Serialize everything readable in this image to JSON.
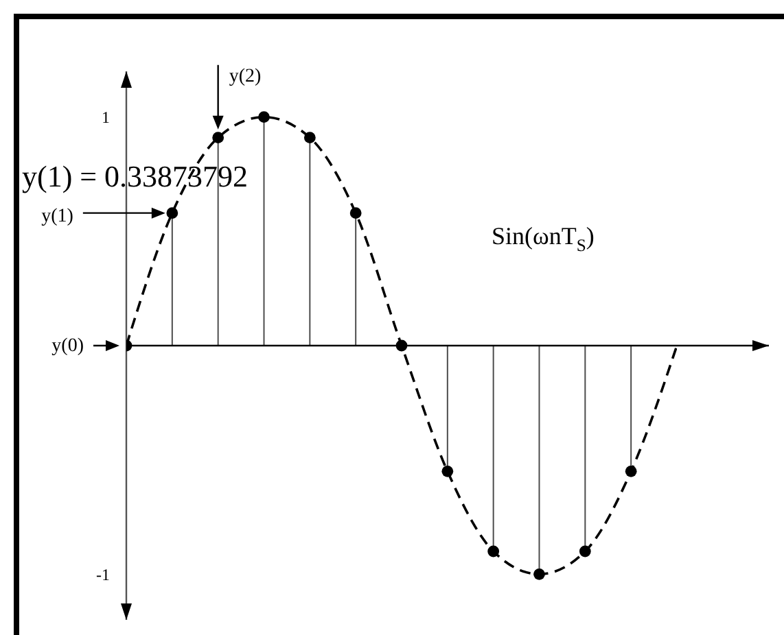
{
  "chart_data": {
    "type": "lollipop",
    "categories": [
      null,
      null,
      null,
      null,
      null,
      null,
      null,
      null,
      null,
      null,
      null,
      null,
      null
    ],
    "series": [
      {
        "color": "#000000",
        "marker": "circle",
        "values": [
          0,
          0.58,
          0.91,
          1,
          0.91,
          0.58,
          0,
          -0.55,
          -0.9,
          -1,
          -0.9,
          -0.55,
          null
        ]
      },
      {
        "type": "line",
        "color": "#000000",
        "line_style": "dashed",
        "marker": "none",
        "values": [
          0,
          0.58,
          0.91,
          1,
          0.91,
          0.58,
          0,
          -0.55,
          -0.9,
          -1,
          -0.9,
          -0.55,
          0
        ]
      }
    ],
    "ylim": [
      -1.2,
      1.2
    ],
    "yticks": [
      -1,
      1
    ],
    "tick_labels": "y",
    "ref_lines": [
      {
        "axis": "y",
        "value": 0,
        "color": "#000000"
      }
    ],
    "annotations": [
      "y(0)",
      "y(1)",
      "y(2)",
      "y(1) = 0.33873792",
      "Sin(ωnT$_{S}$)"
    ]
  }
}
